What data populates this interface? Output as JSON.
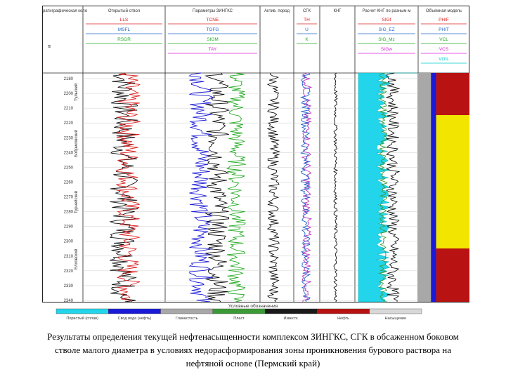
{
  "chart_data": {
    "type": "line",
    "title": "Well log panel",
    "tracks": [
      {
        "id": "strat",
        "title": "Стратиграфическая колонка"
      },
      {
        "id": "open",
        "title": "Открытый ствол",
        "curves": [
          "LLS",
          "MSFL",
          "RSGR"
        ]
      },
      {
        "id": "inngk",
        "title": "Параметры ЗИНГКС",
        "curves": [
          "TCNE",
          "TOFG",
          "SIGM",
          "TAY"
        ]
      },
      {
        "id": "act",
        "title": "Актив. пород"
      },
      {
        "id": "sgk",
        "title": "СГК",
        "curves": [
          "TH",
          "U",
          "K"
        ]
      },
      {
        "id": "kng",
        "title": "КНГ"
      },
      {
        "id": "mod",
        "title": "Расчет КНГ по разным методам ЗИНГКС",
        "curves": [
          "SIGf",
          "SIG_EZ",
          "SIG_Mz",
          "SIGw"
        ]
      },
      {
        "id": "vol",
        "title": "Объемная модель",
        "curves": [
          "PHIF",
          "PHIT",
          "VCL",
          "VCS",
          "VOIL"
        ]
      }
    ],
    "depth_ticks": [
      "2180",
      "2200",
      "2210",
      "2220",
      "2230",
      "2240",
      "2250",
      "2260",
      "2270",
      "2280",
      "2290",
      "2300",
      "2310",
      "2320",
      "2330",
      "2340"
    ],
    "depth_units": "м",
    "formations": [
      "Тульский",
      "Бобриковский",
      "Турнейский",
      "Елховский"
    ],
    "legend_title": "Условные обозначения",
    "legend": [
      {
        "label": "Пористый (сплав)",
        "color": "#23d5ea"
      },
      {
        "label": "Свод вода (нефть)",
        "color": "#1a1ad8"
      },
      {
        "label": "Глинистость",
        "color": "#a8a8a8"
      },
      {
        "label": "Пласт",
        "color": "#3b9a36"
      },
      {
        "label": "Известк.",
        "color": "#1a1a1a"
      },
      {
        "label": "Нефть",
        "color": "#b81212"
      },
      {
        "label": "Насыщение",
        "color": "#d8d8d8"
      }
    ]
  },
  "caption": {
    "line1": "Результаты определения текущей нефтенасыщенности комплексом ЗИНГКС, СГК в обсаженном боковом",
    "line2": "стволе малого диаметра в условиях недорасформирования зоны проникновения бурового раствора на",
    "line3": "нефтяной основе (Пермский край)"
  }
}
